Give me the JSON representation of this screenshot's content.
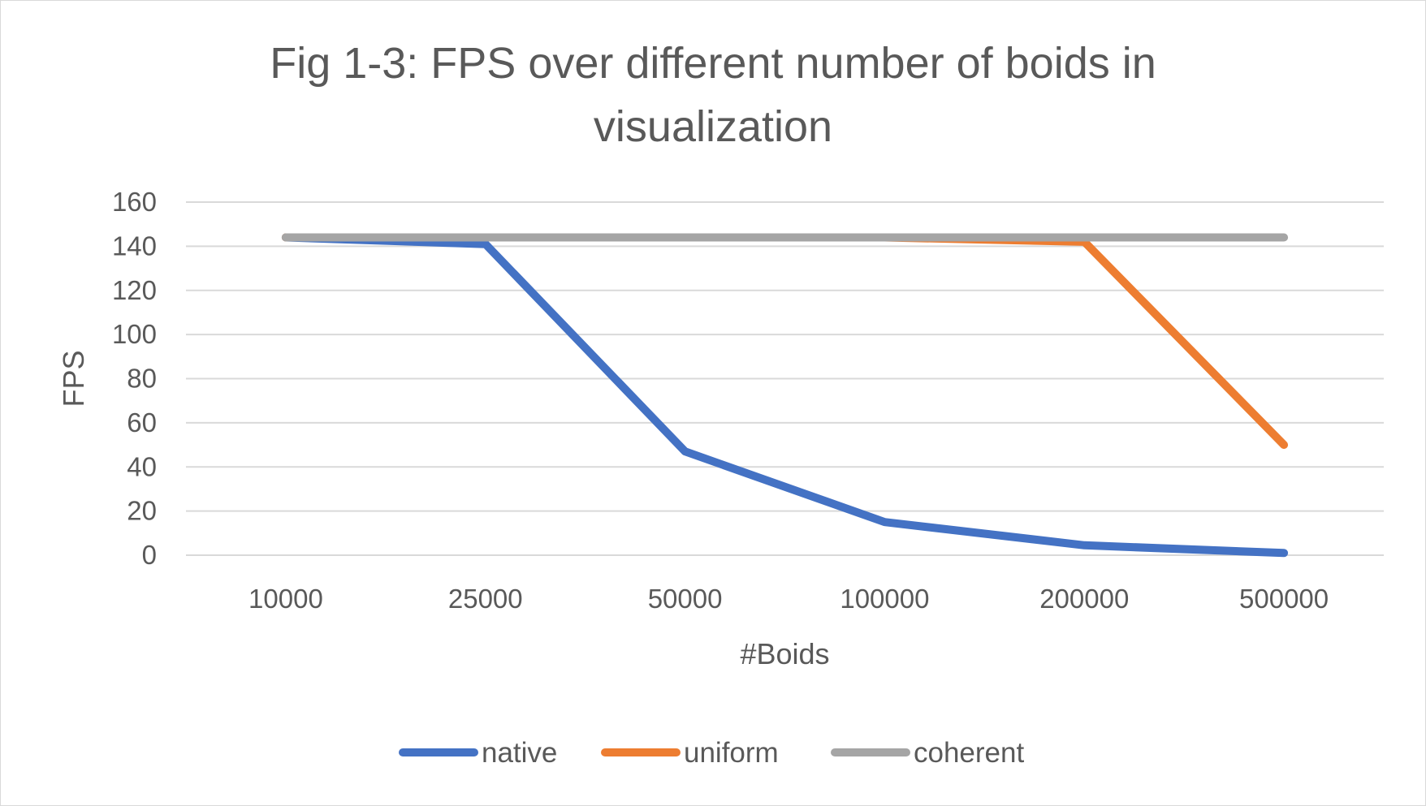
{
  "chart_data": {
    "type": "line",
    "title": "Fig 1-3: FPS over different number of boids in visualization",
    "title_lines": [
      "Fig 1-3: FPS over different number of boids in",
      "visualization"
    ],
    "xlabel": "#Boids",
    "ylabel": "FPS",
    "categories": [
      "10000",
      "25000",
      "50000",
      "100000",
      "200000",
      "500000"
    ],
    "ylim": [
      0,
      160
    ],
    "yticks": [
      0,
      20,
      40,
      60,
      80,
      100,
      120,
      140,
      160
    ],
    "grid": true,
    "legend_position": "bottom",
    "series": [
      {
        "name": "native",
        "color": "#4472c4",
        "values": [
          144,
          141,
          47,
          15,
          4.5,
          1
        ]
      },
      {
        "name": "uniform",
        "color": "#ed7d31",
        "values": [
          144,
          144,
          144,
          144,
          142,
          50
        ]
      },
      {
        "name": "coherent",
        "color": "#a5a5a5",
        "values": [
          144,
          144,
          144,
          144,
          144,
          144
        ]
      }
    ]
  }
}
